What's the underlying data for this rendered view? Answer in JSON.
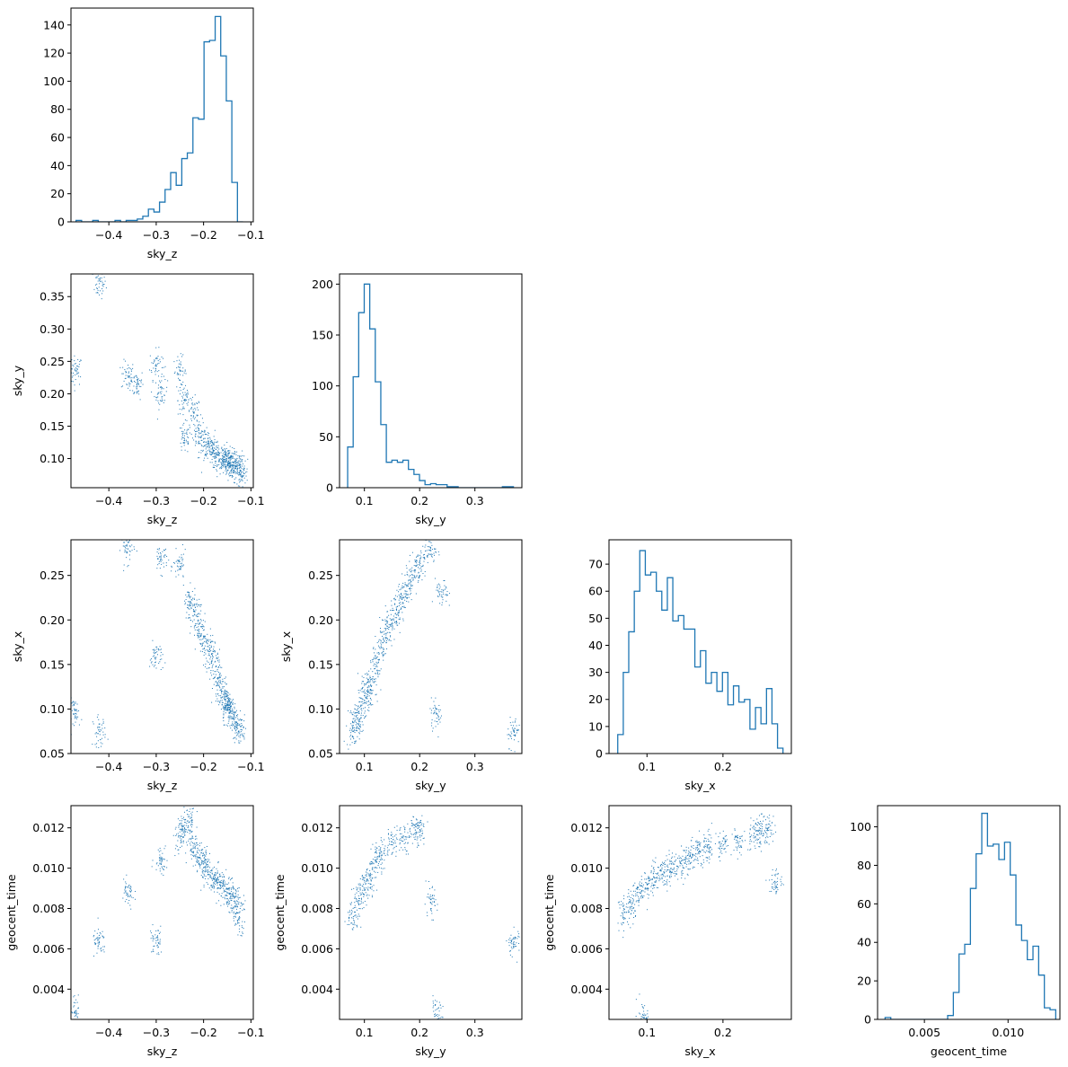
{
  "palette": {
    "series_color": "#1f77b4",
    "axis_color": "#000000",
    "background": "#ffffff"
  },
  "chart_data": [
    {
      "id": "hist_sky_z",
      "type": "bar",
      "subtype": "step-histogram",
      "xlabel": "sky_z",
      "ylabel": "",
      "xlim": [
        -0.48,
        -0.095
      ],
      "ylim": [
        0,
        152
      ],
      "xticks": [
        -0.4,
        -0.3,
        -0.2,
        -0.1
      ],
      "xtick_labels": [
        "−0.4",
        "−0.3",
        "−0.2",
        "−0.1"
      ],
      "yticks": [
        0,
        20,
        40,
        60,
        80,
        100,
        120,
        140
      ],
      "ytick_labels": [
        "0",
        "20",
        "40",
        "60",
        "80",
        "100",
        "120",
        "140"
      ],
      "bin_edges": [
        -0.4693,
        -0.4575,
        -0.4458,
        -0.434,
        -0.4223,
        -0.4105,
        -0.3988,
        -0.387,
        -0.3753,
        -0.3635,
        -0.3518,
        -0.34,
        -0.3283,
        -0.3165,
        -0.3048,
        -0.293,
        -0.2813,
        -0.2695,
        -0.2578,
        -0.246,
        -0.2343,
        -0.2225,
        -0.2108,
        -0.199,
        -0.1873,
        -0.1755,
        -0.1638,
        -0.152,
        -0.1403,
        -0.1285,
        -0.1168
      ],
      "values": [
        1,
        0,
        0,
        1,
        0,
        0,
        0,
        1,
        0,
        1,
        1,
        2,
        4,
        9,
        7,
        14,
        23,
        35,
        26,
        45,
        49,
        74,
        73,
        128,
        129,
        146,
        118,
        86,
        28,
        0
      ]
    },
    {
      "id": "scatter_sky_z_sky_y",
      "type": "scatter",
      "xlabel": "sky_z",
      "ylabel": "sky_y",
      "xlim": [
        -0.48,
        -0.095
      ],
      "ylim": [
        0.055,
        0.385
      ],
      "xticks": [
        -0.4,
        -0.3,
        -0.2,
        -0.1
      ],
      "xtick_labels": [
        "−0.4",
        "−0.3",
        "−0.2",
        "−0.1"
      ],
      "yticks": [
        0.1,
        0.15,
        0.2,
        0.25,
        0.3,
        0.35
      ],
      "ytick_labels": [
        "0.10",
        "0.15",
        "0.20",
        "0.25",
        "0.30",
        "0.35"
      ],
      "x": [
        -0.47,
        -0.42,
        -0.36,
        -0.34,
        -0.3,
        -0.29,
        -0.25,
        -0.24,
        -0.24,
        -0.22,
        -0.21,
        -0.2,
        -0.19,
        -0.18,
        -0.17,
        -0.16,
        -0.155,
        -0.15,
        -0.145,
        -0.14,
        -0.13,
        -0.125,
        -0.12
      ],
      "y": [
        0.235,
        0.37,
        0.228,
        0.215,
        0.245,
        0.2,
        0.235,
        0.19,
        0.13,
        0.17,
        0.14,
        0.125,
        0.12,
        0.11,
        0.105,
        0.1,
        0.098,
        0.095,
        0.092,
        0.09,
        0.088,
        0.085,
        0.08
      ]
    },
    {
      "id": "hist_sky_y",
      "type": "bar",
      "subtype": "step-histogram",
      "xlabel": "sky_y",
      "ylabel": "",
      "xlim": [
        0.055,
        0.385
      ],
      "ylim": [
        0,
        210
      ],
      "xticks": [
        0.1,
        0.2,
        0.3
      ],
      "xtick_labels": [
        "0.1",
        "0.2",
        "0.3"
      ],
      "yticks": [
        0,
        50,
        100,
        150,
        200
      ],
      "ytick_labels": [
        "0",
        "50",
        "100",
        "150",
        "200"
      ],
      "bin_edges": [
        0.0697,
        0.0797,
        0.0897,
        0.0997,
        0.1097,
        0.1197,
        0.1297,
        0.1397,
        0.1497,
        0.1597,
        0.1697,
        0.1797,
        0.1897,
        0.1997,
        0.2097,
        0.2197,
        0.2297,
        0.2397,
        0.2497,
        0.2597,
        0.2697,
        0.2797,
        0.2897,
        0.2997,
        0.3097,
        0.3197,
        0.3297,
        0.3397,
        0.3497,
        0.3597,
        0.3697
      ],
      "values": [
        40,
        109,
        172,
        200,
        156,
        104,
        62,
        25,
        27,
        25,
        27,
        18,
        13,
        7,
        3,
        4,
        3,
        3,
        1,
        1,
        0,
        0,
        0,
        0,
        0,
        0,
        0,
        0,
        1,
        1
      ]
    },
    {
      "id": "scatter_sky_z_sky_x",
      "type": "scatter",
      "xlabel": "sky_z",
      "ylabel": "sky_x",
      "xlim": [
        -0.48,
        -0.095
      ],
      "ylim": [
        0.05,
        0.29
      ],
      "xticks": [
        -0.4,
        -0.3,
        -0.2,
        -0.1
      ],
      "xtick_labels": [
        "−0.4",
        "−0.3",
        "−0.2",
        "−0.1"
      ],
      "yticks": [
        0.05,
        0.1,
        0.15,
        0.2,
        0.25
      ],
      "ytick_labels": [
        "0.05",
        "0.10",
        "0.15",
        "0.20",
        "0.25"
      ],
      "x": [
        -0.47,
        -0.42,
        -0.36,
        -0.3,
        -0.29,
        -0.25,
        -0.23,
        -0.22,
        -0.21,
        -0.2,
        -0.19,
        -0.18,
        -0.17,
        -0.16,
        -0.155,
        -0.15,
        -0.145,
        -0.14,
        -0.13,
        -0.125
      ],
      "y": [
        0.095,
        0.075,
        0.28,
        0.158,
        0.27,
        0.26,
        0.22,
        0.21,
        0.195,
        0.18,
        0.165,
        0.15,
        0.135,
        0.12,
        0.11,
        0.105,
        0.1,
        0.095,
        0.085,
        0.075
      ]
    },
    {
      "id": "scatter_sky_y_sky_x",
      "type": "scatter",
      "xlabel": "sky_y",
      "ylabel": "sky_x",
      "xlim": [
        0.055,
        0.385
      ],
      "ylim": [
        0.05,
        0.29
      ],
      "xticks": [
        0.1,
        0.2,
        0.3
      ],
      "xtick_labels": [
        "0.1",
        "0.2",
        "0.3"
      ],
      "yticks": [
        0.05,
        0.1,
        0.15,
        0.2,
        0.25
      ],
      "ytick_labels": [
        "0.05",
        "0.10",
        "0.15",
        "0.20",
        "0.25"
      ],
      "x": [
        0.08,
        0.085,
        0.09,
        0.1,
        0.105,
        0.11,
        0.12,
        0.13,
        0.14,
        0.15,
        0.16,
        0.17,
        0.18,
        0.19,
        0.2,
        0.22,
        0.23,
        0.24,
        0.37
      ],
      "y": [
        0.075,
        0.085,
        0.095,
        0.11,
        0.12,
        0.13,
        0.15,
        0.17,
        0.185,
        0.2,
        0.215,
        0.225,
        0.24,
        0.255,
        0.265,
        0.278,
        0.095,
        0.228,
        0.075
      ]
    },
    {
      "id": "hist_sky_x",
      "type": "bar",
      "subtype": "step-histogram",
      "xlabel": "sky_x",
      "ylabel": "",
      "xlim": [
        0.05,
        0.29
      ],
      "ylim": [
        0,
        79
      ],
      "xticks": [
        0.1,
        0.2
      ],
      "xtick_labels": [
        "0.1",
        "0.2"
      ],
      "yticks": [
        0,
        10,
        20,
        30,
        40,
        50,
        60,
        70
      ],
      "ytick_labels": [
        "0",
        "10",
        "20",
        "30",
        "40",
        "50",
        "60",
        "70"
      ],
      "bin_edges": [
        0.0615,
        0.0688,
        0.076,
        0.0833,
        0.0905,
        0.0978,
        0.105,
        0.1123,
        0.1195,
        0.1268,
        0.134,
        0.1413,
        0.1485,
        0.1558,
        0.163,
        0.1703,
        0.1775,
        0.1848,
        0.192,
        0.1993,
        0.2065,
        0.2138,
        0.221,
        0.2283,
        0.2355,
        0.2428,
        0.25,
        0.2573,
        0.2645,
        0.2718,
        0.279
      ],
      "values": [
        7,
        30,
        45,
        60,
        75,
        66,
        67,
        60,
        53,
        65,
        49,
        51,
        46,
        46,
        32,
        38,
        26,
        30,
        23,
        30,
        18,
        25,
        19,
        20,
        9,
        17,
        11,
        24,
        11,
        2
      ]
    },
    {
      "id": "scatter_sky_z_geocent_time",
      "type": "scatter",
      "xlabel": "sky_z",
      "ylabel": "geocent_time",
      "xlim": [
        -0.48,
        -0.095
      ],
      "ylim": [
        0.0025,
        0.0131
      ],
      "xticks": [
        -0.4,
        -0.3,
        -0.2,
        -0.1
      ],
      "xtick_labels": [
        "−0.4",
        "−0.3",
        "−0.2",
        "−0.1"
      ],
      "yticks": [
        0.004,
        0.006,
        0.008,
        0.01,
        0.012
      ],
      "ytick_labels": [
        "0.004",
        "0.006",
        "0.008",
        "0.010",
        "0.012"
      ],
      "x": [
        -0.47,
        -0.42,
        -0.36,
        -0.3,
        -0.29,
        -0.25,
        -0.24,
        -0.23,
        -0.22,
        -0.21,
        -0.2,
        -0.19,
        -0.18,
        -0.17,
        -0.16,
        -0.15,
        -0.14,
        -0.13,
        -0.125
      ],
      "y": [
        0.0027,
        0.0063,
        0.0087,
        0.0064,
        0.0105,
        0.0115,
        0.012,
        0.0123,
        0.011,
        0.0105,
        0.0102,
        0.0099,
        0.0095,
        0.0093,
        0.0091,
        0.0088,
        0.0085,
        0.0082,
        0.0075
      ]
    },
    {
      "id": "scatter_sky_y_geocent_time",
      "type": "scatter",
      "xlabel": "sky_y",
      "ylabel": "geocent_time",
      "xlim": [
        0.055,
        0.385
      ],
      "ylim": [
        0.0025,
        0.0131
      ],
      "xticks": [
        0.1,
        0.2,
        0.3
      ],
      "xtick_labels": [
        "0.1",
        "0.2",
        "0.3"
      ],
      "yticks": [
        0.004,
        0.006,
        0.008,
        0.01,
        0.012
      ],
      "ytick_labels": [
        "0.004",
        "0.006",
        "0.008",
        "0.010",
        "0.012"
      ],
      "x": [
        0.08,
        0.09,
        0.1,
        0.11,
        0.12,
        0.13,
        0.15,
        0.17,
        0.19,
        0.2,
        0.22,
        0.23,
        0.37
      ],
      "y": [
        0.0076,
        0.0085,
        0.009,
        0.0095,
        0.0103,
        0.0108,
        0.0113,
        0.0115,
        0.012,
        0.0118,
        0.0083,
        0.0027,
        0.0063
      ]
    },
    {
      "id": "scatter_sky_x_geocent_time",
      "type": "scatter",
      "xlabel": "sky_x",
      "ylabel": "geocent_time",
      "xlim": [
        0.05,
        0.29
      ],
      "ylim": [
        0.0025,
        0.0131
      ],
      "xticks": [
        0.1,
        0.2
      ],
      "xtick_labels": [
        "0.1",
        "0.2"
      ],
      "yticks": [
        0.004,
        0.006,
        0.008,
        0.01,
        0.012
      ],
      "ytick_labels": [
        "0.004",
        "0.006",
        "0.008",
        "0.010",
        "0.012"
      ],
      "x": [
        0.07,
        0.08,
        0.09,
        0.095,
        0.1,
        0.11,
        0.12,
        0.13,
        0.14,
        0.15,
        0.16,
        0.17,
        0.18,
        0.2,
        0.22,
        0.24,
        0.25,
        0.26,
        0.27
      ],
      "y": [
        0.0078,
        0.0082,
        0.0088,
        0.0027,
        0.0092,
        0.0095,
        0.0097,
        0.0099,
        0.0101,
        0.0104,
        0.0106,
        0.0108,
        0.011,
        0.0111,
        0.0113,
        0.0116,
        0.0118,
        0.012,
        0.0093
      ]
    },
    {
      "id": "hist_geocent_time",
      "type": "bar",
      "subtype": "step-histogram",
      "xlabel": "geocent_time",
      "ylabel": "",
      "xlim": [
        0.0022,
        0.0131
      ],
      "ylim": [
        0,
        111
      ],
      "xticks": [
        0.005,
        0.01
      ],
      "xtick_labels": [
        "0.005",
        "0.010"
      ],
      "yticks": [
        0,
        20,
        40,
        60,
        80,
        100
      ],
      "ytick_labels": [
        "0",
        "20",
        "40",
        "60",
        "80",
        "100"
      ],
      "bin_edges": [
        0.00265,
        0.00299,
        0.00333,
        0.00367,
        0.00401,
        0.00435,
        0.00469,
        0.00503,
        0.00537,
        0.00571,
        0.00605,
        0.00639,
        0.00673,
        0.00707,
        0.00741,
        0.00775,
        0.00809,
        0.00843,
        0.00877,
        0.00911,
        0.00945,
        0.00979,
        0.01013,
        0.01047,
        0.01081,
        0.01115,
        0.01149,
        0.01183,
        0.01217,
        0.01251,
        0.01285
      ],
      "values": [
        1,
        0,
        0,
        0,
        0,
        0,
        0,
        0,
        0,
        0,
        0,
        2,
        14,
        34,
        39,
        68,
        86,
        107,
        90,
        91,
        83,
        92,
        75,
        49,
        41,
        31,
        38,
        23,
        6,
        5
      ]
    }
  ]
}
